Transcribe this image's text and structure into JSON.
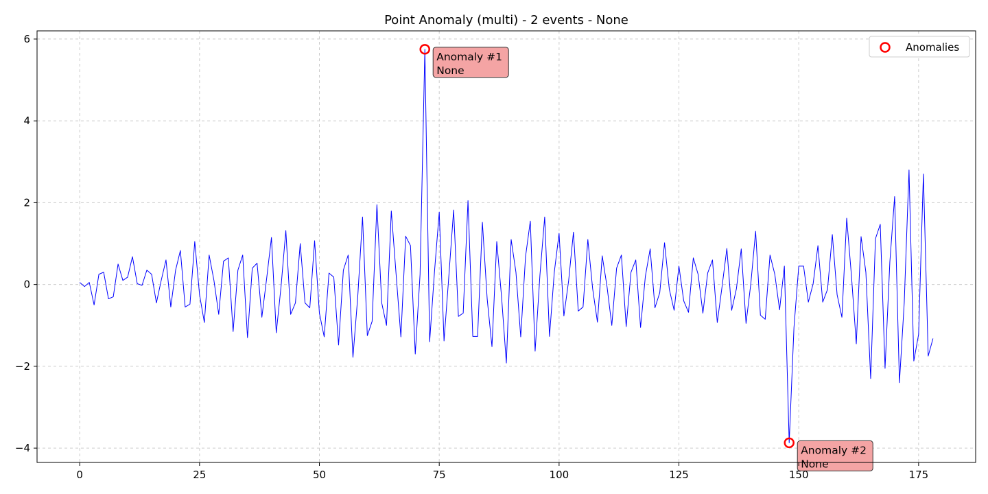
{
  "chart_data": {
    "type": "line",
    "title": "Point Anomaly (multi) - 2 events - None",
    "xlabel": "",
    "ylabel": "",
    "xlim": [
      -8.9,
      186.9
    ],
    "ylim": [
      -4.35,
      6.2
    ],
    "x_ticks": [
      0,
      25,
      50,
      75,
      100,
      125,
      150,
      175
    ],
    "y_ticks": [
      -4,
      -2,
      0,
      2,
      4,
      6
    ],
    "y_tick_labels": [
      "−4",
      "−2",
      "0",
      "2",
      "4",
      "6"
    ],
    "grid": true,
    "legend_position": "top-right",
    "series": [
      {
        "color": "#0000ff",
        "x_start": 0,
        "values": [
          0.05,
          -0.05,
          0.05,
          -0.5,
          0.25,
          0.3,
          -0.35,
          -0.3,
          0.5,
          0.1,
          0.18,
          0.68,
          0.02,
          -0.02,
          0.35,
          0.25,
          -0.45,
          0.1,
          0.6,
          -0.55,
          0.35,
          0.83,
          -0.55,
          -0.48,
          1.05,
          -0.25,
          -0.93,
          0.72,
          0.1,
          -0.73,
          0.57,
          0.65,
          -1.15,
          0.35,
          0.72,
          -1.3,
          0.4,
          0.52,
          -0.8,
          0.15,
          1.15,
          -1.18,
          -0.05,
          1.32,
          -0.73,
          -0.45,
          1.0,
          -0.45,
          -0.57,
          1.07,
          -0.7,
          -1.28,
          0.28,
          0.18,
          -1.48,
          0.35,
          0.72,
          -1.78,
          -0.3,
          1.65,
          -1.25,
          -0.9,
          1.95,
          -0.45,
          -1.0,
          1.8,
          0.25,
          -1.28,
          1.18,
          0.95,
          -1.7,
          0.25,
          5.75,
          -1.4,
          0.3,
          1.77,
          -1.38,
          0.2,
          1.82,
          -0.78,
          -0.7,
          2.05,
          -1.27,
          -1.27,
          1.52,
          -0.35,
          -1.52,
          1.05,
          -0.3,
          -1.92,
          1.1,
          0.3,
          -1.28,
          0.68,
          1.55,
          -1.63,
          0.22,
          1.65,
          -1.27,
          0.3,
          1.25,
          -0.77,
          0.1,
          1.28,
          -0.65,
          -0.55,
          1.1,
          -0.1,
          -0.92,
          0.7,
          -0.05,
          -1.0,
          0.4,
          0.72,
          -1.03,
          0.3,
          0.6,
          -1.05,
          0.2,
          0.87,
          -0.57,
          -0.2,
          1.02,
          -0.12,
          -0.63,
          0.45,
          -0.4,
          -0.68,
          0.65,
          0.25,
          -0.7,
          0.28,
          0.6,
          -0.93,
          -0.05,
          0.88,
          -0.63,
          -0.1,
          0.87,
          -0.95,
          0.02,
          1.3,
          -0.75,
          -0.85,
          0.72,
          0.25,
          -0.62,
          0.45,
          -3.87,
          -1.05,
          0.45,
          0.45,
          -0.43,
          0.02,
          0.95,
          -0.43,
          -0.12,
          1.22,
          -0.25,
          -0.8,
          1.62,
          0.2,
          -1.45,
          1.17,
          0.3,
          -2.3,
          1.12,
          1.47,
          -2.05,
          0.55,
          2.15,
          -2.4,
          -0.45,
          2.8,
          -1.87,
          -1.22,
          2.7,
          -1.75,
          -1.32
        ]
      }
    ],
    "anomalies": [
      {
        "x": 72,
        "y": 5.75,
        "label_line1": "Anomaly #1",
        "label_line2": "None"
      },
      {
        "x": 148,
        "y": -3.87,
        "label_line1": "Anomaly #2",
        "label_line2": "None"
      }
    ],
    "legend": {
      "label": "Anomalies",
      "marker_color": "#ff0000"
    },
    "annotation_box_color": "#f4a4a4"
  }
}
